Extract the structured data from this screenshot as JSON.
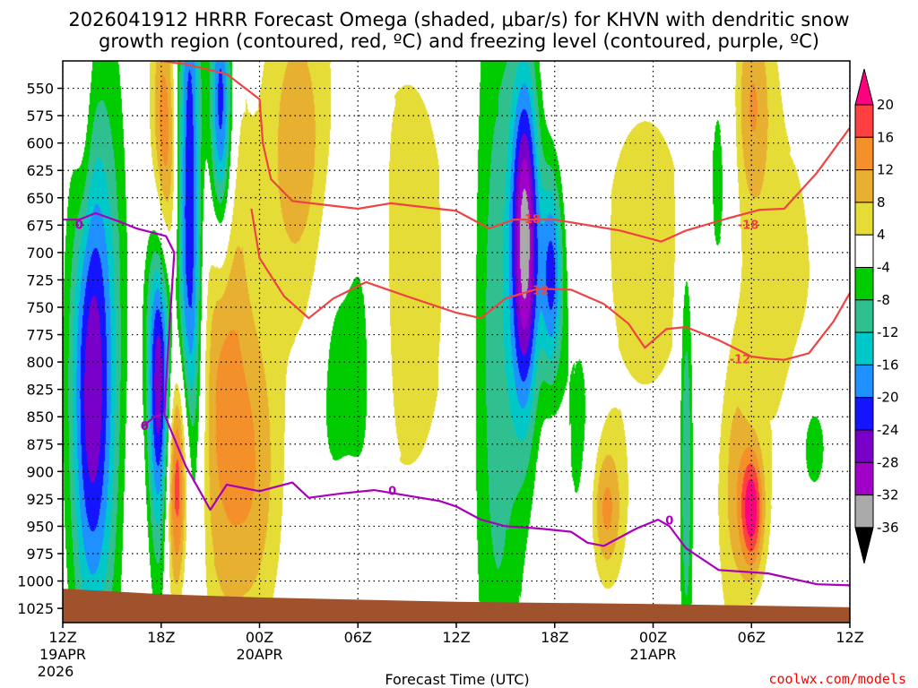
{
  "chart_data": {
    "type": "heatmap",
    "title_line1": "2026041912 HRRR Forecast Omega (shaded, μbar/s) for KHVN with dendritic snow",
    "title_line2": "growth region (contoured, red, ºC) and freezing level (contoured, purple, ºC)",
    "xlabel": "Forecast Time (UTC)",
    "credit": "coolwx.com/models",
    "x_hours": [
      0,
      6,
      12,
      18,
      24,
      30,
      36,
      42,
      48
    ],
    "x_ticks": [
      {
        "h": 0,
        "label": "12Z",
        "day": "19APR",
        "year": "2026"
      },
      {
        "h": 6,
        "label": "18Z",
        "day": "",
        "year": ""
      },
      {
        "h": 12,
        "label": "00Z",
        "day": "20APR",
        "year": ""
      },
      {
        "h": 18,
        "label": "06Z",
        "day": "",
        "year": ""
      },
      {
        "h": 24,
        "label": "12Z",
        "day": "",
        "year": ""
      },
      {
        "h": 30,
        "label": "18Z",
        "day": "",
        "year": ""
      },
      {
        "h": 36,
        "label": "00Z",
        "day": "21APR",
        "year": ""
      },
      {
        "h": 42,
        "label": "06Z",
        "day": "",
        "year": ""
      },
      {
        "h": 48,
        "label": "12Z",
        "day": "",
        "year": ""
      }
    ],
    "y_ticks": [
      550,
      575,
      600,
      625,
      650,
      675,
      700,
      725,
      750,
      775,
      800,
      825,
      850,
      875,
      900,
      925,
      950,
      975,
      1000,
      1025
    ],
    "ylim": [
      525,
      1038
    ],
    "colorbar": {
      "labels": [
        "20",
        "16",
        "12",
        "8",
        "4",
        "-4",
        "-8",
        "-12",
        "-16",
        "-20",
        "-24",
        "-28",
        "-32",
        "-36"
      ],
      "colors": [
        "#ff0080",
        "#ff4040",
        "#f4902a",
        "#e8b030",
        "#e6dc38",
        "#ffffff",
        "#00cc00",
        "#30c090",
        "#00c8c8",
        "#1e90ff",
        "#1414ff",
        "#7800c8",
        "#a000c8",
        "#aaaaaa",
        "#000000"
      ]
    },
    "omega_levels": [
      -36,
      -32,
      -28,
      -24,
      -20,
      -16,
      -12,
      -8,
      -4,
      4,
      8,
      12,
      16,
      20
    ],
    "omega_colors": [
      "#aaaaaa",
      "#a000c8",
      "#7800c8",
      "#1414ff",
      "#1e90ff",
      "#00c8c8",
      "#30c090",
      "#00cc00",
      "#ffffff",
      "#e6dc38",
      "#e8b030",
      "#f4902a",
      "#ff4040",
      "#ff0080"
    ],
    "omega_features": [
      {
        "h": 1.7,
        "p": 825,
        "sh": 0.9,
        "sp": 160,
        "a": -26
      },
      {
        "h": 1.2,
        "p": 580,
        "sh": 0.4,
        "sp": 90,
        "a": 6
      },
      {
        "h": 3.0,
        "p": 760,
        "sh": 0.8,
        "sp": 230,
        "a": -6
      },
      {
        "h": 5.9,
        "p": 800,
        "sh": 0.55,
        "sp": 130,
        "a": -38
      },
      {
        "h": 6.1,
        "p": 640,
        "sh": 0.6,
        "sp": 110,
        "a": 26
      },
      {
        "h": 6.4,
        "p": 930,
        "sh": 1.4,
        "sp": 90,
        "a": 6
      },
      {
        "h": 7.0,
        "p": 900,
        "sh": 0.55,
        "sp": 80,
        "a": 22
      },
      {
        "h": 7.7,
        "p": 680,
        "sh": 0.55,
        "sp": 240,
        "a": -26
      },
      {
        "h": 9.6,
        "p": 570,
        "sh": 0.5,
        "sp": 90,
        "a": -28
      },
      {
        "h": 9.7,
        "p": 780,
        "sh": 1.1,
        "sp": 200,
        "a": 12
      },
      {
        "h": 11.7,
        "p": 900,
        "sh": 1.2,
        "sp": 110,
        "a": 10
      },
      {
        "h": 14.2,
        "p": 600,
        "sh": 1.5,
        "sp": 110,
        "a": 10
      },
      {
        "h": 16.5,
        "p": 820,
        "sh": 0.8,
        "sp": 130,
        "a": -7
      },
      {
        "h": 18.2,
        "p": 800,
        "sh": 0.8,
        "sp": 150,
        "a": -8
      },
      {
        "h": 17.2,
        "p": 960,
        "sh": 1.1,
        "sp": 40,
        "a": 6
      },
      {
        "h": 21.0,
        "p": 720,
        "sh": 3.5,
        "sp": 260,
        "a": 5
      },
      {
        "h": 26.5,
        "p": 770,
        "sh": 1.2,
        "sp": 280,
        "a": -12
      },
      {
        "h": 28.2,
        "p": 690,
        "sh": 0.6,
        "sp": 110,
        "a": -32
      },
      {
        "h": 29.8,
        "p": 720,
        "sh": 0.5,
        "sp": 70,
        "a": -22
      },
      {
        "h": 31.5,
        "p": 850,
        "sh": 0.8,
        "sp": 110,
        "a": -7
      },
      {
        "h": 33.1,
        "p": 935,
        "sh": 0.7,
        "sp": 45,
        "a": 12
      },
      {
        "h": 35.5,
        "p": 700,
        "sh": 3.5,
        "sp": 180,
        "a": 5
      },
      {
        "h": 38.0,
        "p": 880,
        "sh": 0.3,
        "sp": 140,
        "a": -14
      },
      {
        "h": 40.0,
        "p": 660,
        "sh": 0.8,
        "sp": 140,
        "a": -8
      },
      {
        "h": 40.8,
        "p": 900,
        "sh": 0.7,
        "sp": 110,
        "a": 8
      },
      {
        "h": 42.0,
        "p": 560,
        "sh": 0.8,
        "sp": 70,
        "a": 10
      },
      {
        "h": 42.0,
        "p": 935,
        "sh": 0.5,
        "sp": 40,
        "a": 20
      },
      {
        "h": 45.7,
        "p": 875,
        "sh": 0.9,
        "sp": 50,
        "a": -8
      },
      {
        "h": 44.0,
        "p": 740,
        "sh": 2.2,
        "sp": 180,
        "a": 5
      }
    ],
    "contours": [
      {
        "name": "dgz-minus18",
        "label": "-18",
        "color": "#ee4444",
        "label_at": [
          28.5,
          670
        ],
        "points": [
          [
            6,
            525
          ],
          [
            7.5,
            528
          ],
          [
            10,
            537
          ],
          [
            12,
            560
          ],
          [
            12.2,
            600
          ],
          [
            12.7,
            633
          ],
          [
            14,
            653
          ],
          [
            18,
            660
          ],
          [
            20,
            655
          ],
          [
            24,
            662
          ],
          [
            26,
            678
          ],
          [
            27.5,
            670
          ],
          [
            30,
            670
          ],
          [
            34,
            680
          ],
          [
            36.5,
            690
          ],
          [
            38,
            680
          ],
          [
            40.5,
            669
          ],
          [
            42.5,
            661
          ],
          [
            44,
            660
          ],
          [
            46,
            627
          ],
          [
            48,
            586
          ]
        ]
      },
      {
        "name": "dgz-minus12",
        "label": "-12",
        "color": "#ee4444",
        "label_at": [
          29.0,
          735
        ],
        "points": [
          [
            11.5,
            660
          ],
          [
            12,
            705
          ],
          [
            13.5,
            740
          ],
          [
            15,
            760
          ],
          [
            16.5,
            742
          ],
          [
            18.5,
            727
          ],
          [
            21,
            740
          ],
          [
            24,
            755
          ],
          [
            25.5,
            760
          ],
          [
            27,
            742
          ],
          [
            29,
            733
          ],
          [
            31,
            734
          ],
          [
            33,
            747
          ],
          [
            34.5,
            765
          ],
          [
            35.5,
            787
          ],
          [
            36.8,
            770
          ],
          [
            38,
            768
          ],
          [
            40,
            780
          ],
          [
            42,
            795
          ],
          [
            43,
            797
          ],
          [
            44,
            798
          ],
          [
            45.5,
            792
          ],
          [
            47,
            763
          ],
          [
            48,
            737
          ]
        ]
      },
      {
        "name": "freezing-level",
        "label": "0",
        "color": "#aa00bb",
        "label_at": [
          1.0,
          675
        ],
        "points": [
          [
            0,
            670
          ],
          [
            1,
            670
          ],
          [
            2,
            664
          ],
          [
            3.5,
            672
          ],
          [
            4.5,
            678
          ],
          [
            6.3,
            685
          ],
          [
            6.8,
            700
          ],
          [
            6.5,
            770
          ],
          [
            6.3,
            820
          ],
          [
            6.2,
            848
          ],
          [
            7.5,
            895
          ],
          [
            9,
            935
          ],
          [
            10,
            912
          ],
          [
            12,
            918
          ],
          [
            14,
            910
          ],
          [
            15,
            924
          ],
          [
            17,
            920
          ],
          [
            19,
            917
          ],
          [
            21,
            922
          ],
          [
            23,
            927
          ],
          [
            24,
            932
          ],
          [
            25.5,
            944
          ],
          [
            27,
            950
          ],
          [
            29,
            952
          ],
          [
            31,
            955
          ],
          [
            32,
            965
          ],
          [
            33,
            968
          ],
          [
            35,
            952
          ],
          [
            36.3,
            944
          ],
          [
            37,
            950
          ],
          [
            38,
            970
          ],
          [
            40,
            990
          ],
          [
            43,
            993
          ],
          [
            46,
            1003
          ],
          [
            48,
            1004
          ]
        ]
      },
      {
        "name": "freezing-level-upper",
        "label": "0",
        "color": "#aa00bb",
        "label_at": [
          5.0,
          859
        ],
        "points": [
          [
            4.8,
            860
          ],
          [
            5.1,
            856
          ],
          [
            5.6,
            850
          ],
          [
            6.0,
            848
          ]
        ]
      }
    ],
    "contour_labels_extra": [
      {
        "text": "0",
        "color": "#aa00bb",
        "h": 20.1,
        "p": 918
      },
      {
        "text": "0",
        "color": "#aa00bb",
        "h": 37.0,
        "p": 945
      },
      {
        "text": "-18",
        "color": "#ee4444",
        "h": 41.8,
        "p": 675
      },
      {
        "text": "-12",
        "color": "#ee4444",
        "h": 41.3,
        "p": 798
      }
    ],
    "terrain": {
      "color": "#a0522d",
      "points": [
        [
          0,
          1007
        ],
        [
          6,
          1012
        ],
        [
          12,
          1015
        ],
        [
          24,
          1019
        ],
        [
          36,
          1021
        ],
        [
          48,
          1024
        ]
      ]
    }
  }
}
